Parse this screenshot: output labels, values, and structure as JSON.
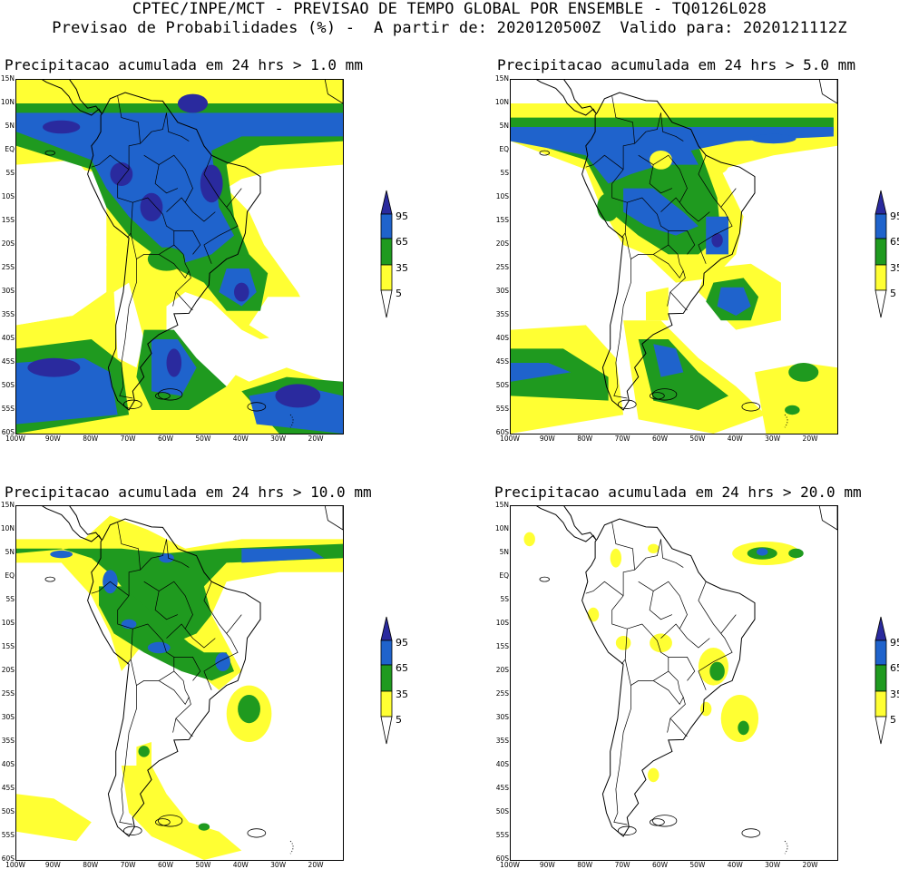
{
  "header": {
    "line1": "CPTEC/INPE/MCT - PREVISAO DE TEMPO GLOBAL POR ENSEMBLE - TQ0126L028",
    "line2": "Previsao de Probabilidades (%) -  A partir de: 2020120500Z  Valido para: 2020121112Z"
  },
  "panels": [
    {
      "id": "p1",
      "title": "Precipitacao acumulada em 24 hrs > 1.0 mm"
    },
    {
      "id": "p2",
      "title": "Precipitacao acumulada em 24 hrs > 5.0 mm"
    },
    {
      "id": "p3",
      "title": "Precipitacao acumulada em 24 hrs > 10.0 mm"
    },
    {
      "id": "p4",
      "title": "Precipitacao acumulada em 24 hrs > 20.0 mm"
    }
  ],
  "lat_labels": [
    "15N",
    "10N",
    "5N",
    "EQ",
    "5S",
    "10S",
    "15S",
    "20S",
    "25S",
    "30S",
    "35S",
    "40S",
    "45S",
    "50S",
    "55S",
    "60S"
  ],
  "lon_labels": [
    "100W",
    "90W",
    "80W",
    "70W",
    "60W",
    "50W",
    "40W",
    "30W",
    "20W"
  ],
  "colorbar": {
    "levels": [
      "95",
      "65",
      "35",
      "5"
    ],
    "colors": {
      "c5": "#ffff33",
      "c35": "#1f9a1f",
      "c65": "#1f63cc",
      "c95": "#2a2a9e"
    }
  }
}
